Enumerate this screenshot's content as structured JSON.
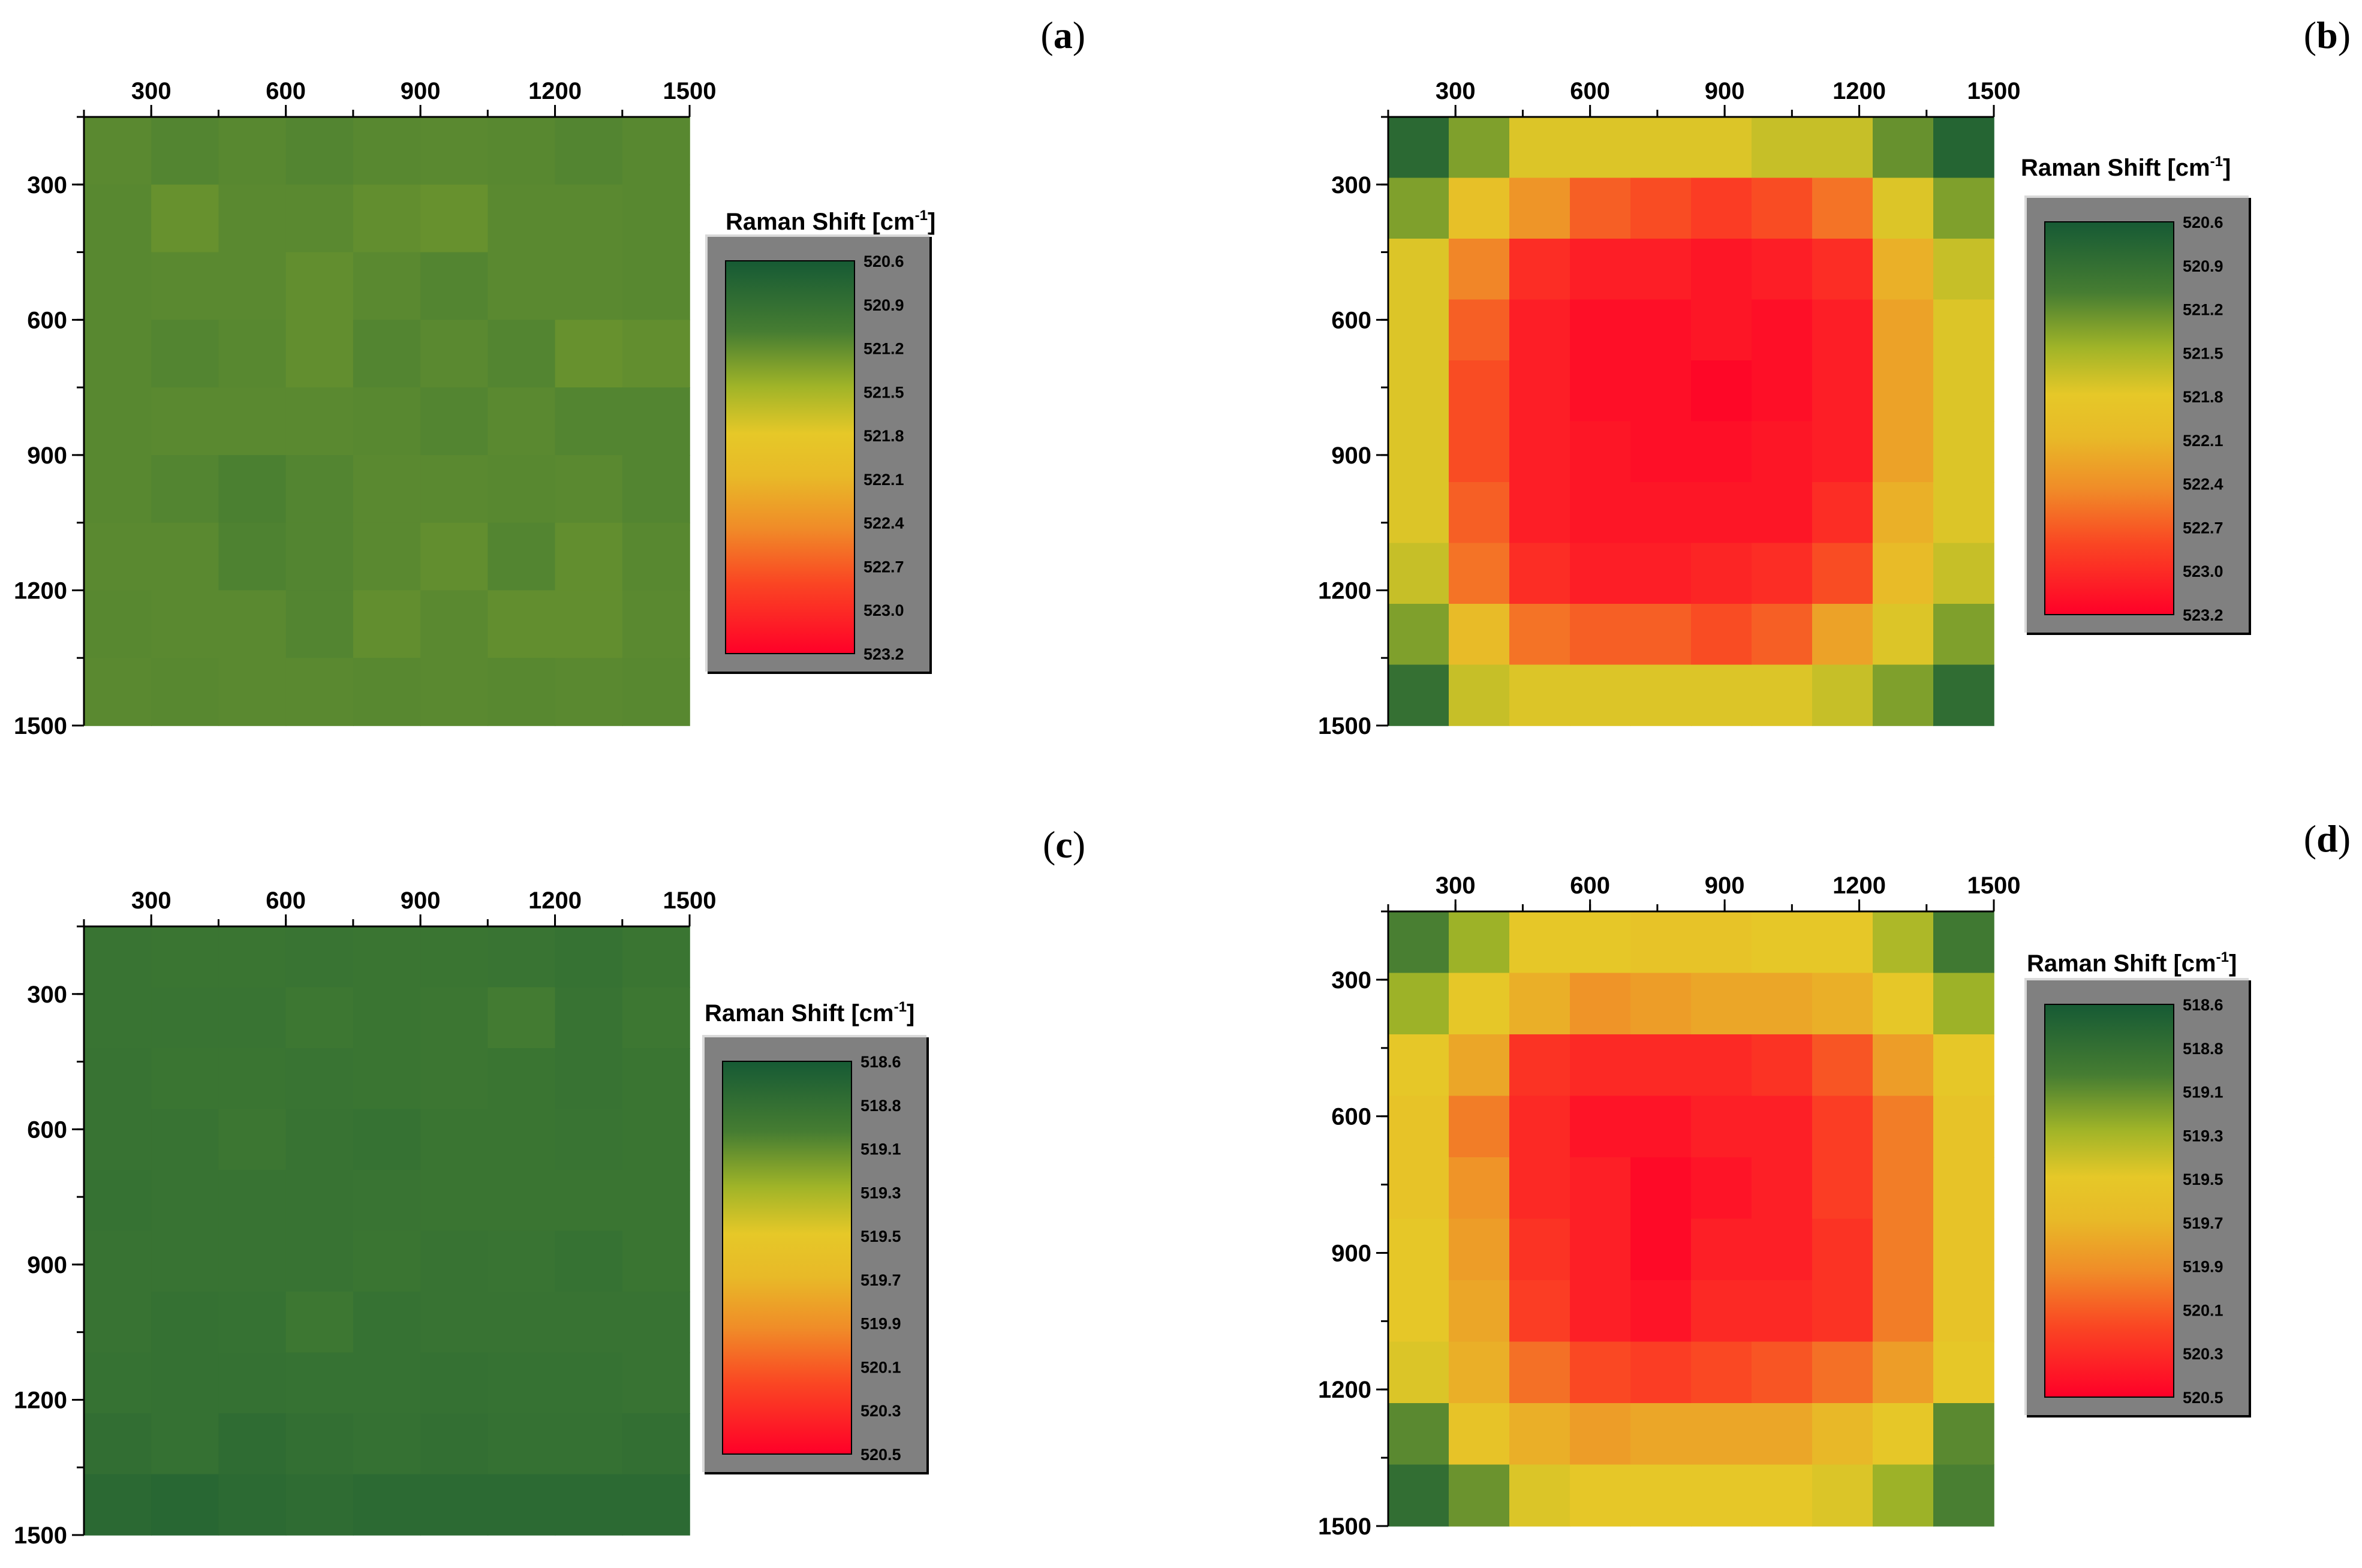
{
  "chart_data": [
    {
      "type": "heatmap",
      "panel": "(a)",
      "x_ticks": [
        "300",
        "600",
        "900",
        "1200",
        "1500"
      ],
      "y_ticks": [
        "300",
        "600",
        "900",
        "1200",
        "1500"
      ],
      "axis_range": [
        150,
        1500
      ],
      "colorbar": {
        "title": "Raman Shift [cm",
        "title_sup": "-1",
        "title_end": "]",
        "labels": [
          "520.6",
          "520.9",
          "521.2",
          "521.5",
          "521.8",
          "522.1",
          "522.4",
          "522.7",
          "523.0",
          "523.2"
        ],
        "range": [
          520.6,
          523.2
        ]
      },
      "values": [
        [
          521.15,
          521.12,
          521.14,
          521.12,
          521.14,
          521.15,
          521.14,
          521.12,
          521.14
        ],
        [
          521.14,
          521.2,
          521.15,
          521.15,
          521.18,
          521.2,
          521.15,
          521.15,
          521.14
        ],
        [
          521.14,
          521.15,
          521.15,
          521.18,
          521.15,
          521.12,
          521.15,
          521.15,
          521.14
        ],
        [
          521.14,
          521.12,
          521.14,
          521.18,
          521.12,
          521.15,
          521.12,
          521.2,
          521.18
        ],
        [
          521.14,
          521.15,
          521.15,
          521.15,
          521.14,
          521.12,
          521.15,
          521.12,
          521.12
        ],
        [
          521.14,
          521.12,
          521.09,
          521.12,
          521.15,
          521.15,
          521.14,
          521.15,
          521.12
        ],
        [
          521.15,
          521.15,
          521.1,
          521.12,
          521.15,
          521.18,
          521.12,
          521.18,
          521.14
        ],
        [
          521.14,
          521.15,
          521.15,
          521.12,
          521.18,
          521.15,
          521.18,
          521.18,
          521.15
        ],
        [
          521.15,
          521.14,
          521.15,
          521.15,
          521.14,
          521.15,
          521.14,
          521.15,
          521.14
        ]
      ]
    },
    {
      "type": "heatmap",
      "panel": "(b)",
      "x_ticks": [
        "300",
        "600",
        "900",
        "1200",
        "1500"
      ],
      "y_ticks": [
        "300",
        "600",
        "900",
        "1200",
        "1500"
      ],
      "axis_range": [
        150,
        1500
      ],
      "colorbar": {
        "title": "Raman Shift [cm",
        "title_sup": "-1",
        "title_end": "]",
        "labels": [
          "520.6",
          "520.9",
          "521.2",
          "521.5",
          "521.8",
          "522.1",
          "522.4",
          "522.7",
          "523.0",
          "523.2"
        ],
        "range": [
          520.6,
          523.2
        ]
      },
      "values": [
        [
          520.8,
          521.3,
          521.7,
          521.7,
          521.7,
          521.7,
          521.6,
          521.6,
          521.2,
          520.75
        ],
        [
          521.3,
          521.9,
          522.3,
          522.6,
          522.7,
          522.8,
          522.7,
          522.5,
          521.7,
          521.3
        ],
        [
          521.7,
          522.4,
          522.9,
          523.0,
          523.0,
          523.05,
          523.0,
          522.9,
          522.1,
          521.6
        ],
        [
          521.7,
          522.6,
          523.0,
          523.1,
          523.1,
          523.05,
          523.1,
          523.0,
          522.2,
          521.7
        ],
        [
          521.7,
          522.7,
          523.0,
          523.1,
          523.1,
          523.15,
          523.1,
          523.0,
          522.2,
          521.7
        ],
        [
          521.7,
          522.7,
          523.0,
          523.05,
          523.1,
          523.1,
          523.05,
          523.0,
          522.2,
          521.7
        ],
        [
          521.7,
          522.6,
          523.0,
          523.05,
          523.05,
          523.05,
          523.05,
          522.9,
          522.1,
          521.7
        ],
        [
          521.6,
          522.5,
          522.9,
          523.0,
          523.0,
          522.95,
          522.9,
          522.7,
          522.0,
          521.6
        ],
        [
          521.3,
          522.0,
          522.5,
          522.6,
          522.6,
          522.7,
          522.6,
          522.2,
          521.7,
          521.3
        ],
        [
          520.9,
          521.6,
          521.7,
          521.7,
          521.7,
          521.7,
          521.7,
          521.6,
          521.3,
          520.85
        ]
      ]
    },
    {
      "type": "heatmap",
      "panel": "(c)",
      "x_ticks": [
        "300",
        "600",
        "900",
        "1200",
        "1500"
      ],
      "y_ticks": [
        "300",
        "600",
        "900",
        "1200",
        "1500"
      ],
      "axis_range": [
        150,
        1500
      ],
      "colorbar": {
        "title": "Raman Shift [cm",
        "title_sup": "-1",
        "title_end": "]",
        "labels": [
          "518.6",
          "518.8",
          "519.1",
          "519.3",
          "519.5",
          "519.7",
          "519.9",
          "520.1",
          "520.3",
          "520.5"
        ],
        "range": [
          518.6,
          520.5
        ]
      },
      "values": [
        [
          518.85,
          518.86,
          518.86,
          518.85,
          518.86,
          518.86,
          518.85,
          518.83,
          518.86
        ],
        [
          518.85,
          518.85,
          518.85,
          518.88,
          518.86,
          518.87,
          518.92,
          518.84,
          518.88
        ],
        [
          518.84,
          518.86,
          518.86,
          518.85,
          518.86,
          518.87,
          518.86,
          518.84,
          518.86
        ],
        [
          518.84,
          518.84,
          518.87,
          518.84,
          518.83,
          518.86,
          518.86,
          518.85,
          518.86
        ],
        [
          518.83,
          518.84,
          518.84,
          518.84,
          518.85,
          518.86,
          518.86,
          518.86,
          518.86
        ],
        [
          518.84,
          518.84,
          518.84,
          518.84,
          518.86,
          518.84,
          518.85,
          518.83,
          518.86
        ],
        [
          518.84,
          518.82,
          518.83,
          518.88,
          518.83,
          518.84,
          518.84,
          518.84,
          518.84
        ],
        [
          518.83,
          518.82,
          518.82,
          518.83,
          518.83,
          518.82,
          518.83,
          518.83,
          518.84
        ],
        [
          518.8,
          518.82,
          518.78,
          518.81,
          518.82,
          518.81,
          518.82,
          518.82,
          518.81
        ],
        [
          518.75,
          518.73,
          518.76,
          518.78,
          518.76,
          518.76,
          518.76,
          518.76,
          518.76
        ]
      ]
    },
    {
      "type": "heatmap",
      "panel": "(d)",
      "x_ticks": [
        "300",
        "600",
        "900",
        "1200",
        "1500"
      ],
      "y_ticks": [
        "300",
        "600",
        "900",
        "1200",
        "1500"
      ],
      "axis_range": [
        150,
        1500
      ],
      "colorbar": {
        "title": "Raman Shift [cm",
        "title_sup": "-1",
        "title_end": "]",
        "labels": [
          "518.6",
          "518.8",
          "519.1",
          "519.3",
          "519.5",
          "519.7",
          "519.9",
          "520.1",
          "520.3",
          "520.5"
        ],
        "range": [
          518.6,
          520.5
        ]
      },
      "values": [
        [
          518.95,
          519.2,
          519.45,
          519.45,
          519.5,
          519.5,
          519.45,
          519.45,
          519.25,
          518.9
        ],
        [
          519.2,
          519.45,
          519.7,
          519.85,
          519.8,
          519.75,
          519.75,
          519.7,
          519.45,
          519.2
        ],
        [
          519.45,
          519.75,
          520.25,
          520.3,
          520.3,
          520.3,
          520.25,
          520.1,
          519.8,
          519.45
        ],
        [
          519.5,
          519.95,
          520.3,
          520.4,
          520.4,
          520.35,
          520.35,
          520.2,
          519.95,
          519.5
        ],
        [
          519.5,
          519.85,
          520.3,
          520.35,
          520.45,
          520.4,
          520.35,
          520.2,
          519.95,
          519.5
        ],
        [
          519.45,
          519.8,
          520.25,
          520.35,
          520.45,
          520.35,
          520.35,
          520.25,
          519.95,
          519.5
        ],
        [
          519.45,
          519.75,
          520.2,
          520.35,
          520.4,
          520.3,
          520.3,
          520.25,
          519.95,
          519.5
        ],
        [
          519.4,
          519.7,
          520.0,
          520.15,
          520.2,
          520.15,
          520.1,
          520.0,
          519.8,
          519.45
        ],
        [
          519.0,
          519.5,
          519.7,
          519.8,
          519.75,
          519.75,
          519.75,
          519.65,
          519.45,
          519.0
        ],
        [
          518.8,
          519.05,
          519.4,
          519.45,
          519.45,
          519.45,
          519.45,
          519.4,
          519.2,
          518.95
        ]
      ]
    }
  ]
}
